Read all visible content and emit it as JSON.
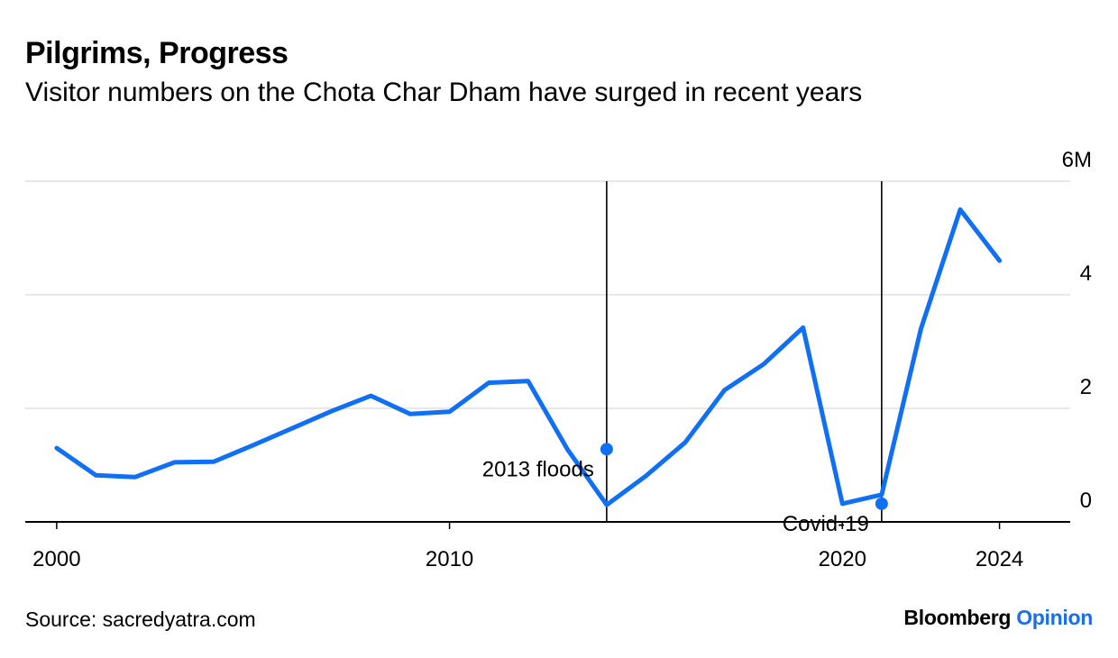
{
  "header": {
    "title": "Pilgrims, Progress",
    "subtitle": "Visitor numbers on the Chota Char Dham have surged in recent years"
  },
  "footer": {
    "source": "Source: sacredyatra.com",
    "brand_primary": "Bloomberg",
    "brand_secondary": "Opinion"
  },
  "colors": {
    "line": "#0f6ff5",
    "grid": "#e8e8e8",
    "axis": "#000000",
    "brand_accent": "#1a6cf0"
  },
  "chart_data": {
    "type": "line",
    "title": "Pilgrims, Progress",
    "subtitle": "Visitor numbers on the Chota Char Dham have surged in recent years",
    "xlabel": "",
    "ylabel": "",
    "y_unit_label": "6M",
    "ylim": [
      0,
      6
    ],
    "yticks": [
      0,
      2,
      4,
      6
    ],
    "ytick_labels": [
      "0",
      "2",
      "4",
      "6M"
    ],
    "xticks": [
      2000,
      2010,
      2020,
      2024
    ],
    "xtick_labels": [
      "2000",
      "2010",
      "2020",
      "2024"
    ],
    "xlim": [
      1999.2,
      2025.8
    ],
    "grid": true,
    "series": [
      {
        "x": [
          2000,
          2001,
          2002,
          2003,
          2004,
          2005,
          2006,
          2007,
          2008,
          2009,
          2010,
          2011,
          2012,
          2013,
          2014,
          2015,
          2016,
          2017,
          2018,
          2019,
          2020,
          2021,
          2022,
          2023,
          2024
        ],
        "values": [
          1.3,
          0.82,
          0.79,
          1.05,
          1.06,
          1.35,
          1.65,
          1.95,
          2.22,
          1.9,
          1.94,
          2.45,
          2.48,
          1.28,
          0.3,
          0.81,
          1.4,
          2.32,
          2.78,
          3.42,
          0.32,
          0.48,
          3.4,
          5.5,
          4.6
        ]
      }
    ],
    "annotations": [
      {
        "text": "2013 floods",
        "x": 2014,
        "y": 1.28
      },
      {
        "text": "Covid-19",
        "x": 2021,
        "y": 0.32
      }
    ]
  }
}
